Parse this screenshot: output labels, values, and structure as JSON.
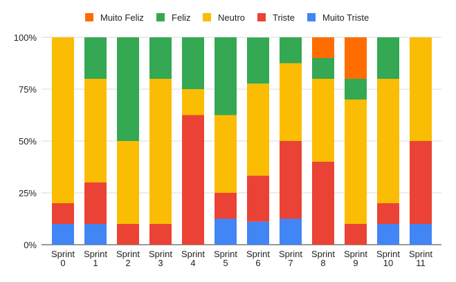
{
  "chart_data": {
    "type": "bar",
    "stacked": true,
    "normalized": true,
    "categories": [
      [
        "Sprint",
        "0"
      ],
      [
        "Sprint",
        "1"
      ],
      [
        "Sprint",
        "2"
      ],
      [
        "Sprint",
        "3"
      ],
      [
        "Sprint",
        "4"
      ],
      [
        "Sprint",
        "5"
      ],
      [
        "Sprint",
        "6"
      ],
      [
        "Sprint",
        "7"
      ],
      [
        "Sprint",
        "8"
      ],
      [
        "Sprint",
        "9"
      ],
      [
        "Sprint",
        "10"
      ],
      [
        "Sprint",
        "11"
      ]
    ],
    "series": [
      {
        "name": "Muito Triste",
        "color": "#4285f4",
        "values": [
          10,
          10,
          0,
          0,
          0,
          12.5,
          11.1,
          12.5,
          0,
          0,
          10,
          10
        ]
      },
      {
        "name": "Triste",
        "color": "#ea4335",
        "values": [
          10,
          20,
          10,
          10,
          62.5,
          12.5,
          22.2,
          37.5,
          40,
          10,
          10,
          40
        ]
      },
      {
        "name": "Neutro",
        "color": "#fbbc04",
        "values": [
          80,
          50,
          40,
          70,
          12.5,
          37.5,
          44.4,
          37.5,
          40,
          60,
          60,
          50
        ]
      },
      {
        "name": "Feliz",
        "color": "#34a853",
        "values": [
          0,
          20,
          50,
          20,
          25,
          37.5,
          22.2,
          12.5,
          10,
          10,
          20,
          0
        ]
      },
      {
        "name": "Muito Feliz",
        "color": "#ff6d01",
        "values": [
          0,
          0,
          0,
          0,
          0,
          0,
          0,
          0,
          10,
          20,
          0,
          0
        ]
      }
    ],
    "legend_order": [
      "Muito Feliz",
      "Feliz",
      "Neutro",
      "Triste",
      "Muito Triste"
    ],
    "y_ticks": [
      "0%",
      "25%",
      "50%",
      "75%",
      "100%"
    ],
    "ylim": [
      0,
      100
    ],
    "grid": true,
    "legend_position": "top-center",
    "title": "",
    "xlabel": "",
    "ylabel": ""
  }
}
